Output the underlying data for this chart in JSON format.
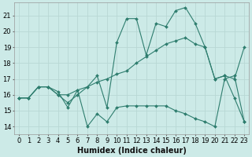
{
  "xlabel": "Humidex (Indice chaleur)",
  "background_color": "#cceae7",
  "grid_color": "#b8d8d4",
  "line_color": "#2e7d6e",
  "xlim": [
    -0.5,
    23.5
  ],
  "ylim": [
    13.5,
    21.8
  ],
  "yticks": [
    14,
    15,
    16,
    17,
    18,
    19,
    20,
    21
  ],
  "xticks": [
    0,
    1,
    2,
    3,
    4,
    5,
    6,
    7,
    8,
    9,
    10,
    11,
    12,
    13,
    14,
    15,
    16,
    17,
    18,
    19,
    20,
    21,
    22,
    23
  ],
  "series1_x": [
    0,
    1,
    2,
    3,
    4,
    5,
    6,
    7,
    8,
    9,
    10,
    11,
    12,
    13,
    14,
    15,
    16,
    17,
    18,
    19,
    20,
    21,
    22,
    23
  ],
  "series1_y": [
    15.8,
    15.8,
    16.5,
    16.5,
    16.2,
    15.2,
    16.3,
    14.0,
    14.8,
    14.3,
    15.2,
    15.3,
    15.3,
    15.3,
    15.3,
    15.3,
    15.0,
    14.8,
    14.5,
    14.3,
    14.0,
    17.0,
    17.2,
    14.3
  ],
  "series2_x": [
    0,
    1,
    2,
    3,
    4,
    5,
    6,
    7,
    8,
    9,
    10,
    11,
    12,
    13,
    14,
    15,
    16,
    17,
    18,
    19,
    20,
    21,
    22,
    23
  ],
  "series2_y": [
    15.8,
    15.8,
    16.5,
    16.5,
    16.0,
    16.0,
    16.3,
    16.5,
    16.8,
    17.0,
    17.3,
    17.5,
    18.0,
    18.4,
    18.8,
    19.2,
    19.4,
    19.6,
    19.2,
    19.0,
    17.0,
    17.2,
    17.0,
    19.0
  ],
  "series3_x": [
    0,
    1,
    2,
    3,
    4,
    5,
    6,
    7,
    8,
    9,
    10,
    11,
    12,
    13,
    14,
    15,
    16,
    17,
    18,
    19,
    20,
    21,
    22,
    23
  ],
  "series3_y": [
    15.8,
    15.8,
    16.5,
    16.5,
    16.0,
    15.5,
    16.0,
    16.5,
    17.2,
    15.2,
    19.3,
    20.8,
    20.8,
    18.5,
    20.5,
    20.3,
    21.3,
    21.5,
    20.5,
    19.0,
    17.0,
    17.2,
    15.8,
    14.3
  ],
  "tick_fontsize": 6.0,
  "xlabel_fontsize": 7.0
}
